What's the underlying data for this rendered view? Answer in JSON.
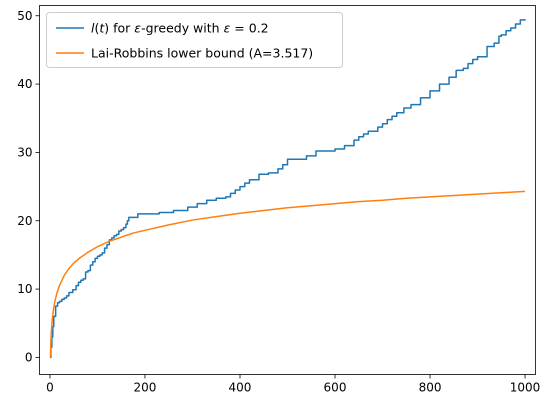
{
  "chart_data": {
    "type": "line",
    "xlim": [
      -22,
      1022
    ],
    "ylim": [
      -2.5,
      51.5
    ],
    "x_ticks": [
      0,
      200,
      400,
      600,
      800,
      1000
    ],
    "y_ticks": [
      0,
      10,
      20,
      30,
      40,
      50
    ],
    "grid": false,
    "legend_position": "top-left",
    "series": [
      {
        "name": "l(t) for ε-greedy with ε = 0.2",
        "color": "#1f77b4",
        "style": "step",
        "x": [
          0,
          2,
          4,
          6,
          8,
          12,
          16,
          20,
          25,
          30,
          35,
          40,
          48,
          55,
          60,
          65,
          70,
          75,
          80,
          85,
          90,
          95,
          100,
          105,
          110,
          115,
          120,
          125,
          130,
          135,
          140,
          145,
          150,
          155,
          160,
          163,
          166,
          170,
          185,
          230,
          260,
          290,
          310,
          330,
          350,
          370,
          380,
          390,
          400,
          410,
          420,
          440,
          460,
          480,
          490,
          500,
          540,
          560,
          600,
          620,
          640,
          650,
          660,
          670,
          690,
          700,
          710,
          720,
          730,
          745,
          760,
          780,
          800,
          820,
          840,
          855,
          870,
          880,
          890,
          900,
          920,
          935,
          945,
          950,
          960,
          970,
          980,
          990,
          1000
        ],
        "y": [
          0.0,
          1.5,
          3.0,
          4.5,
          6.0,
          7.5,
          8.0,
          8.2,
          8.5,
          8.7,
          9.0,
          9.5,
          9.9,
          10.5,
          11.0,
          11.3,
          11.5,
          12.5,
          12.7,
          13.5,
          14.0,
          14.5,
          14.8,
          15.0,
          15.3,
          16.0,
          16.5,
          17.2,
          17.5,
          17.8,
          18.0,
          18.5,
          18.7,
          19.0,
          19.5,
          20.0,
          20.5,
          20.5,
          21.0,
          21.2,
          21.5,
          22.0,
          22.5,
          23.0,
          23.3,
          23.5,
          24.0,
          24.5,
          25.0,
          25.5,
          26.0,
          26.8,
          27.0,
          27.6,
          28.2,
          29.0,
          29.5,
          30.2,
          30.5,
          31.0,
          31.8,
          32.3,
          32.7,
          33.1,
          33.7,
          34.2,
          34.8,
          35.3,
          35.8,
          36.5,
          37.0,
          38.0,
          39.0,
          40.0,
          41.0,
          42.0,
          42.3,
          43.0,
          43.6,
          44.0,
          45.5,
          46.0,
          47.0,
          47.2,
          47.8,
          48.2,
          48.8,
          49.4,
          49.5
        ]
      },
      {
        "name": "Lai-Robbins lower bound (A=3.517)",
        "color": "#ff7f0e",
        "style": "line",
        "x": [
          1,
          2,
          3,
          5,
          8,
          10,
          15,
          20,
          30,
          40,
          50,
          60,
          80,
          100,
          125,
          150,
          175,
          200,
          250,
          300,
          350,
          400,
          450,
          500,
          550,
          600,
          650,
          700,
          750,
          800,
          850,
          900,
          950,
          1000
        ],
        "y": [
          0.0,
          2.4,
          3.9,
          5.7,
          7.3,
          8.1,
          9.5,
          10.5,
          12.0,
          13.0,
          13.8,
          14.4,
          15.4,
          16.2,
          17.0,
          17.6,
          18.2,
          18.6,
          19.4,
          20.1,
          20.6,
          21.1,
          21.5,
          21.9,
          22.2,
          22.5,
          22.8,
          23.0,
          23.3,
          23.5,
          23.7,
          23.9,
          24.1,
          24.3
        ]
      }
    ]
  }
}
